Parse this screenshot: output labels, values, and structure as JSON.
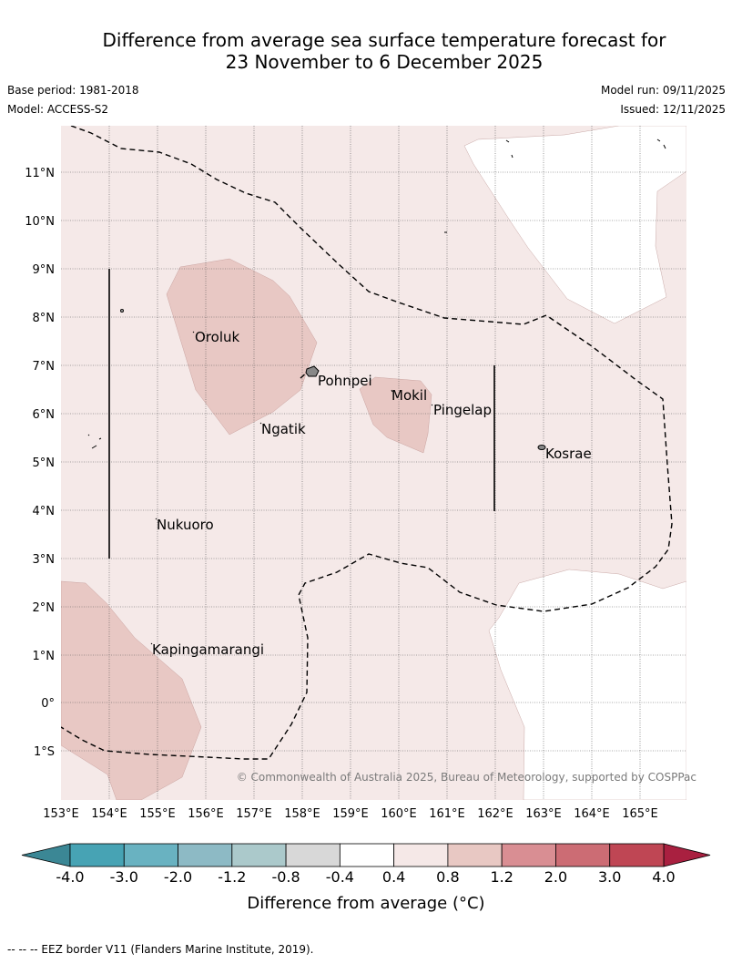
{
  "title": {
    "line1": "Difference from average sea surface temperature forecast for",
    "line2": "23 November to 6 December 2025"
  },
  "meta": {
    "base_period": "Base period: 1981-2018",
    "model": "Model: ACCESS-S2",
    "model_run": "Model run: 09/11/2025",
    "issued": "Issued: 12/11/2025"
  },
  "map": {
    "lat_labels": [
      "11°N",
      "10°N",
      "9°N",
      "8°N",
      "7°N",
      "6°N",
      "5°N",
      "4°N",
      "3°N",
      "2°N",
      "1°N",
      "0°",
      "1°S"
    ],
    "lon_labels": [
      "153°E",
      "154°E",
      "155°E",
      "156°E",
      "157°E",
      "158°E",
      "159°E",
      "160°E",
      "161°E",
      "162°E",
      "163°E",
      "164°E",
      "165°E"
    ],
    "places": [
      {
        "name": "Oroluk"
      },
      {
        "name": "Pohnpei"
      },
      {
        "name": "Mokil"
      },
      {
        "name": "Pingelap"
      },
      {
        "name": "Ngatik"
      },
      {
        "name": "Kosrae"
      },
      {
        "name": "Nukuoro"
      },
      {
        "name": "Kapingamarangi"
      }
    ],
    "copyright": "© Commonwealth of Australia 2025, Bureau of Meteorology, supported by COSPPac"
  },
  "colorbar": {
    "ticks": [
      "-4.0",
      "-3.0",
      "-2.0",
      "-1.2",
      "-0.8",
      "-0.4",
      "0.4",
      "0.8",
      "1.2",
      "2.0",
      "3.0",
      "4.0"
    ],
    "colors": [
      "#47a3b4",
      "#69b2c1",
      "#8dbac5",
      "#abc9cb",
      "#d8d8d8",
      "#ffffff",
      "#f5e8e7",
      "#e8c8c3",
      "#d98e93",
      "#cc6c74",
      "#bf4654"
    ],
    "under_color": "#3b8795",
    "over_color": "#a92040",
    "label": "Difference from average (°C)"
  },
  "footnote": "--  --  -- EEZ border V11 (Flanders Marine Institute, 2019)."
}
